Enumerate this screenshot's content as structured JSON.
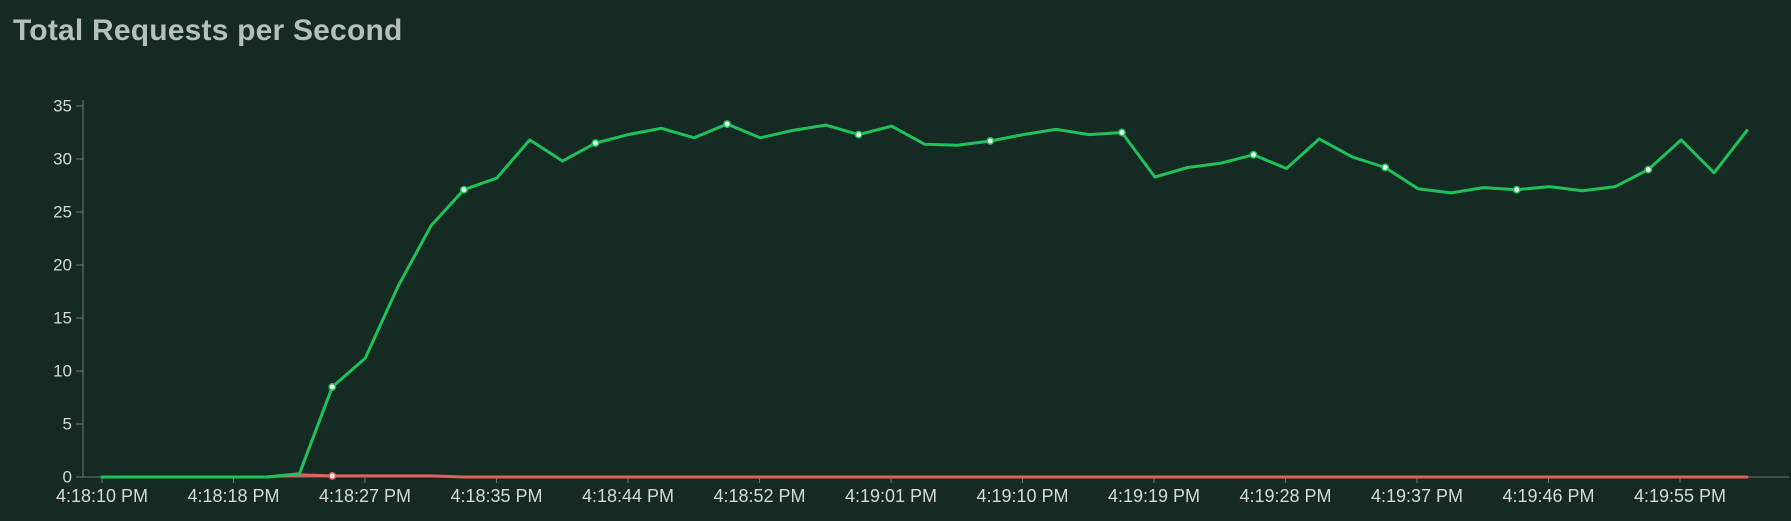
{
  "title": "Total Requests per Second",
  "colors": {
    "background": "#152a22",
    "title": "#b7bfba",
    "axis": "#6f7a73",
    "tick_text": "#d6dad7",
    "requests_line": "#1fc25a",
    "failures_line": "#e0625a",
    "marker_fill": "#e9f3ec"
  },
  "chart_data": {
    "type": "line",
    "title": "Total Requests per Second",
    "xlabel": "",
    "ylabel": "",
    "ylim": [
      0,
      35
    ],
    "yticks": [
      0,
      5,
      10,
      15,
      20,
      25,
      30,
      35
    ],
    "grid": false,
    "legend": "none",
    "x_tick_labels": [
      "4:18:10 PM",
      "4:18:18 PM",
      "4:18:27 PM",
      "4:18:35 PM",
      "4:18:44 PM",
      "4:18:52 PM",
      "4:19:01 PM",
      "4:19:10 PM",
      "4:19:19 PM",
      "4:19:28 PM",
      "4:19:37 PM",
      "4:19:46 PM",
      "4:19:55 PM"
    ],
    "series": [
      {
        "values": [
          0,
          0,
          0,
          0,
          0,
          0,
          0.3,
          8.5,
          11.2,
          18,
          23.7,
          27.1,
          28.2,
          31.8,
          29.8,
          31.5,
          32.3,
          32.9,
          32,
          33.3,
          32,
          32.7,
          33.2,
          32.3,
          33.1,
          31.4,
          31.3,
          31.7,
          32.3,
          32.8,
          32.3,
          32.5,
          28.3,
          29.2,
          29.6,
          30.4,
          29.1,
          31.9,
          30.2,
          29.2,
          27.2,
          26.8,
          27.3,
          27.1,
          27.4,
          27,
          27.4,
          29,
          31.8,
          28.7,
          32.7
        ],
        "markers_at": [
          7,
          11,
          15,
          19,
          23,
          27,
          31,
          35,
          39,
          43,
          47
        ]
      },
      {
        "values": [
          0,
          0,
          0,
          0,
          0,
          0,
          0.2,
          0.1,
          0.1,
          0.1,
          0.1,
          0,
          0,
          0,
          0,
          0,
          0,
          0,
          0,
          0,
          0,
          0,
          0,
          0,
          0,
          0,
          0,
          0,
          0,
          0,
          0,
          0,
          0,
          0,
          0,
          0,
          0,
          0,
          0,
          0,
          0,
          0,
          0,
          0,
          0,
          0,
          0,
          0,
          0,
          0,
          0
        ],
        "markers_at": [
          7
        ]
      }
    ]
  }
}
